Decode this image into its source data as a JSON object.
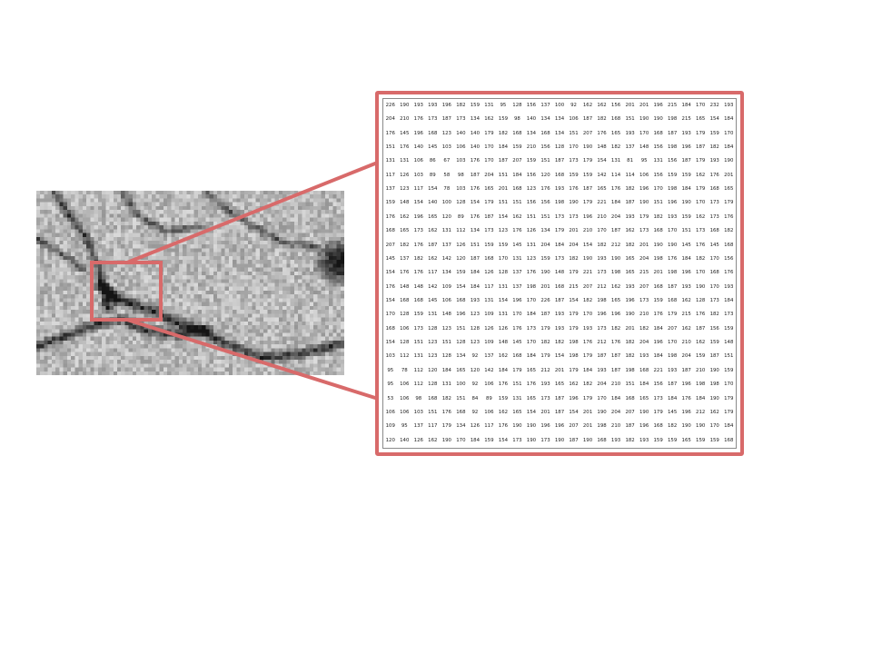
{
  "accent_color": "#d86a6a",
  "image_grid": {
    "rows": 48,
    "cols": 80
  },
  "pixel_matrix": [
    [
      226,
      190,
      193,
      193,
      196,
      182,
      159,
      131,
      95,
      128,
      156,
      137,
      100,
      92,
      162,
      162,
      156,
      201,
      201,
      196,
      215,
      184,
      170,
      232,
      193
    ],
    [
      204,
      210,
      176,
      173,
      187,
      173,
      134,
      162,
      159,
      98,
      140,
      134,
      134,
      106,
      187,
      182,
      168,
      151,
      190,
      190,
      198,
      215,
      165,
      154,
      184
    ],
    [
      176,
      145,
      196,
      168,
      123,
      140,
      140,
      179,
      182,
      168,
      134,
      168,
      134,
      151,
      207,
      176,
      165,
      193,
      170,
      168,
      187,
      193,
      179,
      159,
      170
    ],
    [
      151,
      176,
      140,
      145,
      103,
      106,
      140,
      170,
      184,
      159,
      210,
      156,
      128,
      170,
      190,
      148,
      182,
      137,
      148,
      156,
      198,
      196,
      187,
      182,
      184
    ],
    [
      131,
      131,
      106,
      86,
      67,
      103,
      176,
      170,
      187,
      207,
      159,
      151,
      187,
      173,
      179,
      154,
      131,
      81,
      95,
      131,
      156,
      187,
      179,
      193,
      190
    ],
    [
      117,
      126,
      103,
      89,
      58,
      98,
      187,
      204,
      151,
      184,
      156,
      120,
      168,
      159,
      159,
      142,
      114,
      114,
      106,
      156,
      159,
      159,
      162,
      176,
      201
    ],
    [
      137,
      123,
      117,
      154,
      78,
      103,
      176,
      165,
      201,
      168,
      123,
      176,
      193,
      176,
      187,
      165,
      176,
      182,
      196,
      170,
      198,
      184,
      179,
      168,
      165
    ],
    [
      159,
      148,
      154,
      140,
      100,
      128,
      154,
      179,
      151,
      151,
      156,
      156,
      198,
      190,
      179,
      221,
      184,
      187,
      190,
      151,
      196,
      190,
      170,
      173,
      179
    ],
    [
      176,
      162,
      196,
      165,
      120,
      89,
      176,
      187,
      154,
      162,
      151,
      151,
      173,
      173,
      196,
      210,
      204,
      193,
      179,
      182,
      193,
      159,
      162,
      173,
      176
    ],
    [
      168,
      165,
      173,
      162,
      131,
      112,
      134,
      173,
      123,
      176,
      126,
      134,
      179,
      201,
      210,
      170,
      187,
      162,
      173,
      168,
      170,
      151,
      173,
      168,
      182
    ],
    [
      207,
      182,
      176,
      187,
      137,
      126,
      151,
      159,
      159,
      145,
      131,
      204,
      184,
      204,
      154,
      182,
      212,
      182,
      201,
      190,
      190,
      145,
      176,
      145,
      168
    ],
    [
      145,
      137,
      182,
      162,
      142,
      120,
      187,
      168,
      170,
      131,
      123,
      159,
      173,
      182,
      190,
      193,
      190,
      165,
      204,
      198,
      176,
      184,
      182,
      170,
      156
    ],
    [
      154,
      176,
      176,
      117,
      134,
      159,
      184,
      126,
      128,
      137,
      176,
      190,
      148,
      179,
      221,
      173,
      198,
      165,
      215,
      201,
      198,
      196,
      170,
      168,
      176
    ],
    [
      176,
      148,
      148,
      142,
      109,
      154,
      184,
      117,
      131,
      137,
      198,
      201,
      168,
      215,
      207,
      212,
      162,
      193,
      207,
      168,
      187,
      193,
      190,
      170,
      193
    ],
    [
      154,
      168,
      168,
      145,
      106,
      168,
      193,
      131,
      154,
      196,
      170,
      226,
      187,
      154,
      182,
      198,
      165,
      196,
      173,
      159,
      168,
      162,
      128,
      173,
      184
    ],
    [
      170,
      128,
      159,
      131,
      148,
      196,
      123,
      109,
      131,
      170,
      184,
      187,
      193,
      179,
      170,
      196,
      196,
      190,
      210,
      176,
      179,
      215,
      176,
      182,
      173
    ],
    [
      168,
      106,
      173,
      128,
      123,
      151,
      128,
      126,
      126,
      176,
      173,
      179,
      193,
      179,
      193,
      173,
      182,
      201,
      182,
      184,
      207,
      162,
      187,
      156,
      159
    ],
    [
      154,
      128,
      151,
      123,
      151,
      128,
      123,
      109,
      148,
      145,
      170,
      182,
      182,
      198,
      176,
      212,
      176,
      182,
      204,
      196,
      170,
      210,
      162,
      159,
      148
    ],
    [
      103,
      112,
      131,
      123,
      128,
      134,
      92,
      137,
      162,
      168,
      184,
      179,
      154,
      198,
      179,
      187,
      187,
      182,
      193,
      184,
      198,
      204,
      159,
      187,
      151
    ],
    [
      95,
      78,
      112,
      120,
      184,
      165,
      120,
      142,
      184,
      179,
      165,
      212,
      201,
      179,
      184,
      193,
      187,
      198,
      168,
      221,
      193,
      187,
      210,
      190,
      159
    ],
    [
      95,
      106,
      112,
      128,
      131,
      100,
      92,
      106,
      176,
      151,
      176,
      193,
      165,
      162,
      182,
      204,
      210,
      151,
      184,
      156,
      187,
      196,
      198,
      198,
      170
    ],
    [
      53,
      106,
      98,
      168,
      182,
      151,
      84,
      89,
      159,
      131,
      165,
      173,
      187,
      196,
      179,
      170,
      184,
      168,
      165,
      173,
      184,
      176,
      184,
      190,
      179
    ],
    [
      106,
      106,
      103,
      151,
      176,
      168,
      92,
      106,
      162,
      165,
      154,
      201,
      187,
      154,
      201,
      190,
      204,
      207,
      190,
      179,
      145,
      196,
      212,
      162,
      179
    ],
    [
      109,
      95,
      137,
      117,
      179,
      134,
      126,
      117,
      176,
      190,
      190,
      196,
      196,
      207,
      201,
      198,
      210,
      187,
      196,
      168,
      182,
      190,
      190,
      170,
      184
    ],
    [
      120,
      140,
      126,
      162,
      190,
      170,
      184,
      159,
      154,
      173,
      190,
      173,
      190,
      187,
      190,
      168,
      193,
      182,
      193,
      159,
      159,
      165,
      159,
      159,
      168
    ]
  ]
}
